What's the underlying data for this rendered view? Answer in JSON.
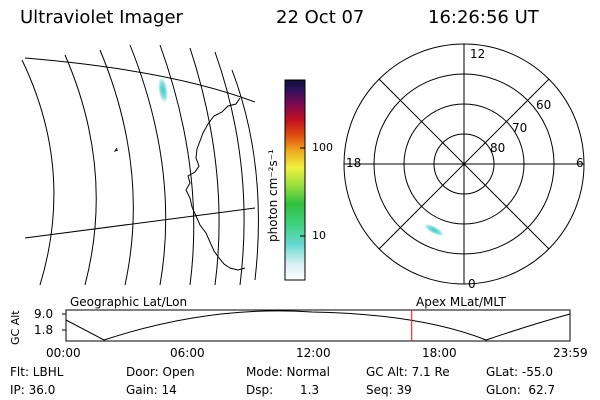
{
  "header": {
    "title": "Ultraviolet Imager",
    "date": "22 Oct 07",
    "time": "16:26:56 UT"
  },
  "colorbar": {
    "tick_100": "100",
    "tick_10": "10",
    "unit_label": "photon cm⁻²s⁻¹"
  },
  "polar": {
    "mlt_top": "12",
    "mlt_left": "18",
    "mlt_right": "6",
    "mlt_bottom": "0",
    "lat_60": "60",
    "lat_70": "70",
    "lat_80": "80"
  },
  "labels": {
    "left_map": "Geographic Lat/Lon",
    "right_map": "Apex MLat/MLT"
  },
  "altitude_plot": {
    "ylabel": "GC Alt",
    "y_top": "9.0",
    "y_bottom": "1.8",
    "x_ticks": [
      "00:00",
      "06:00",
      "12:00",
      "18:00",
      "23:59"
    ],
    "marker_fraction": 0.686
  },
  "info": {
    "flt": "Flt: LBHL",
    "ip": "IP: 36.0",
    "door": "Door: Open",
    "gain": "Gain: 14",
    "mode": "Mode: Normal",
    "dsp_label": "Dsp:",
    "dsp_value": "1.3",
    "gc_alt": "GC Alt: 7.1 Re",
    "seq": "Seq: 39",
    "glat": "GLat: -55.0",
    "glon": "GLon:  62.7"
  },
  "colors": {
    "marker": "#ff0000",
    "aurora": "#66d9cc"
  }
}
